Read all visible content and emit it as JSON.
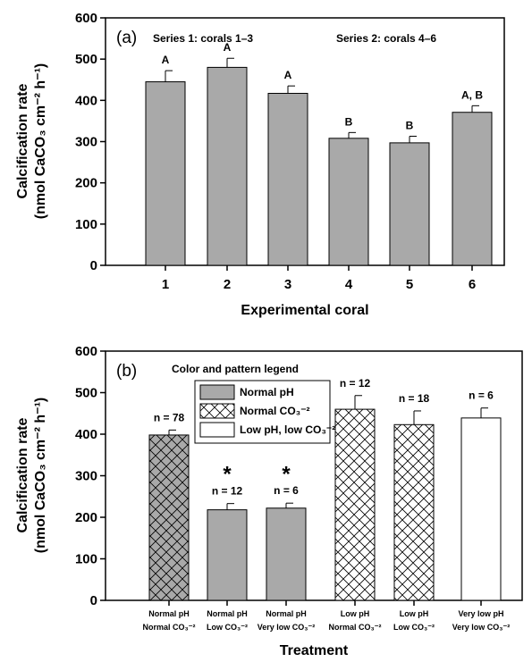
{
  "chart_data": [
    {
      "type": "bar",
      "panel_label": "(a)",
      "annotations": [
        "Series 1: corals 1–3",
        "Series 2: corals 4–6"
      ],
      "categories": [
        "1",
        "2",
        "3",
        "4",
        "5",
        "6"
      ],
      "values": [
        445,
        480,
        417,
        308,
        297,
        371
      ],
      "errors": [
        27,
        22,
        18,
        14,
        16,
        16
      ],
      "letters": [
        "A",
        "A",
        "A",
        "B",
        "B",
        "A, B"
      ],
      "xlabel": "Experimental coral",
      "ylabel_line1": "Calcification rate",
      "ylabel_line2": "(nmol CaCO₃ cm⁻² h⁻¹)",
      "ylim": [
        0,
        600
      ],
      "yticks": [
        "0",
        "100",
        "200",
        "300",
        "400",
        "500",
        "600"
      ],
      "bar_color": "#a9a9a9",
      "grid": false
    },
    {
      "type": "bar",
      "panel_label": "(b)",
      "legend_title": "Color and pattern legend",
      "legend": [
        {
          "label": "Normal pH",
          "pattern": "gray"
        },
        {
          "label": "Normal CO₃⁻²",
          "pattern": "hatch"
        },
        {
          "label": "Low pH,  low CO₃⁻²",
          "pattern": "white"
        }
      ],
      "legend_placement": "top-left",
      "categories": [
        [
          "Normal pH",
          "Normal CO₃⁻²"
        ],
        [
          "Normal pH",
          "Low CO₃⁻²"
        ],
        [
          "Normal pH",
          "Very low CO₃⁻²"
        ],
        [
          "Low pH",
          "Normal CO₃⁻²"
        ],
        [
          "Low pH",
          "Low CO₃⁻²"
        ],
        [
          "Very low pH",
          "Very low CO₃⁻²"
        ]
      ],
      "values": [
        398,
        218,
        222,
        460,
        423,
        439
      ],
      "errors": [
        12,
        15,
        12,
        33,
        33,
        24
      ],
      "patterns": [
        "gray-hatch",
        "gray",
        "gray",
        "hatch",
        "hatch",
        "white"
      ],
      "n_labels": [
        "n = 78",
        "n = 12",
        "n = 6",
        "n = 12",
        "n = 18",
        "n = 6"
      ],
      "significance": [
        "",
        "*",
        "*",
        "",
        "",
        ""
      ],
      "xlabel": "Treatment",
      "ylabel_line1": "Calcification rate",
      "ylabel_line2": "(nmol CaCO₃ cm⁻² h⁻¹)",
      "ylim": [
        0,
        600
      ],
      "yticks": [
        "0",
        "100",
        "200",
        "300",
        "400",
        "500",
        "600"
      ],
      "bar_color": "#a9a9a9",
      "grid": false
    }
  ]
}
